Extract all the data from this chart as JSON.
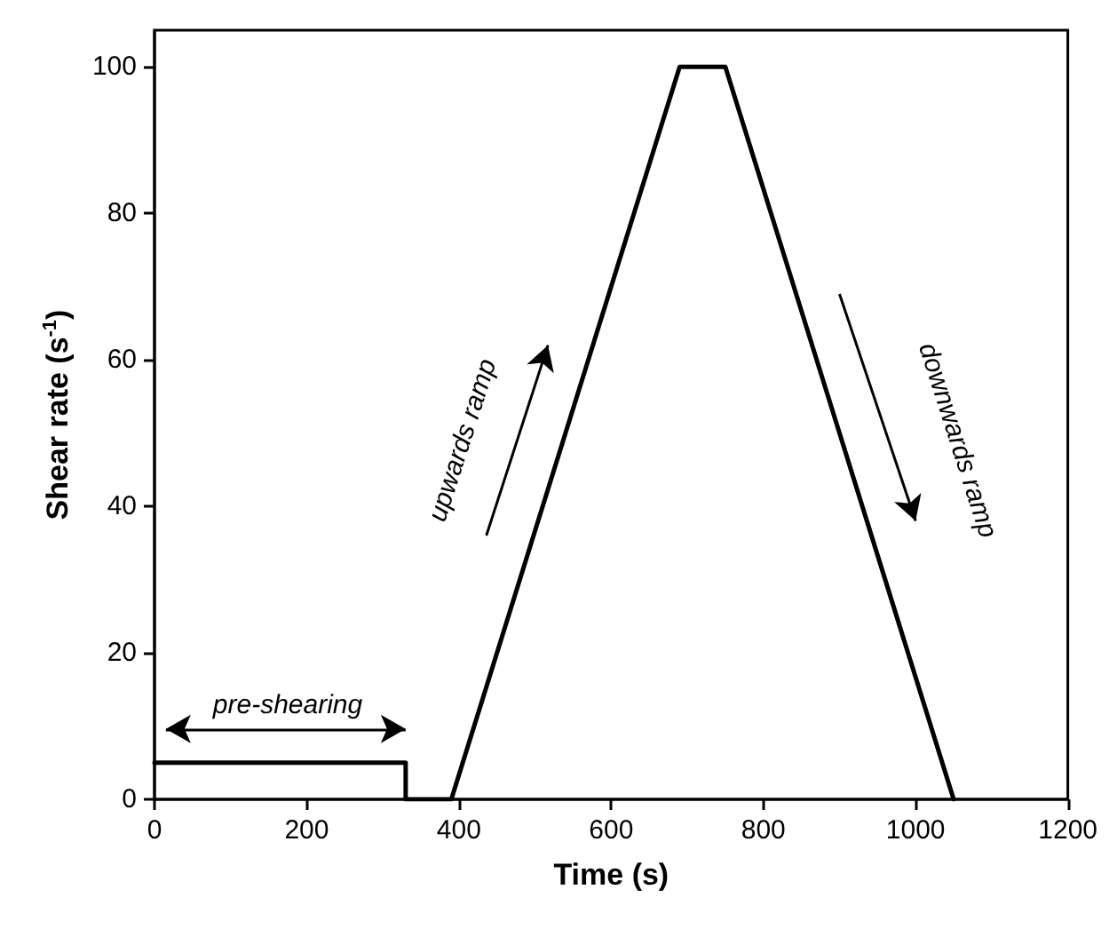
{
  "chart_data": {
    "type": "line",
    "xlabel": "Time (s)",
    "ylabel": "Shear rate (s$^{-1}$)",
    "x": [
      0,
      330,
      330,
      390,
      690,
      750,
      1050
    ],
    "series": [
      {
        "color": "#000000",
        "values": [
          5,
          5,
          0,
          0,
          100,
          100,
          0
        ]
      }
    ],
    "xlim": [
      0,
      1200
    ],
    "xticks": [
      0,
      200,
      400,
      600,
      800,
      1000,
      1200
    ],
    "ylim": [
      0,
      105
    ],
    "yticks": [
      0,
      20,
      40,
      60,
      80,
      100
    ],
    "annotations": [
      "pre-shearing",
      "upwards ramp",
      "downwards ramp"
    ],
    "grid": false,
    "marker": "none",
    "line_style": "solid"
  }
}
